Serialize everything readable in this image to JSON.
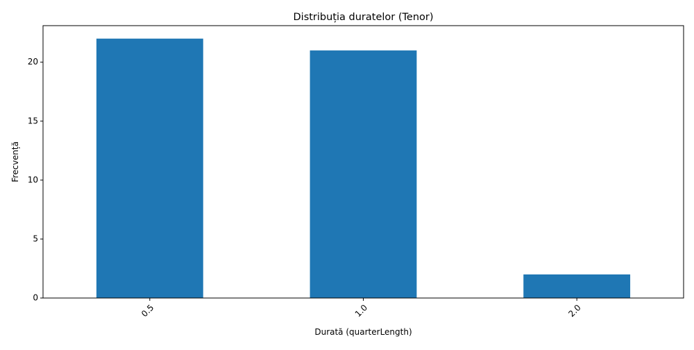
{
  "chart_data": {
    "type": "bar",
    "title": "Distribuția duratelor (Tenor)",
    "xlabel": "Durată (quarterLength)",
    "ylabel": "Frecvență",
    "categories": [
      "0.5",
      "1.0",
      "2.0"
    ],
    "values": [
      22,
      21,
      2
    ],
    "ylim": [
      0,
      23.1
    ],
    "yticks": [
      "0",
      "5",
      "10",
      "15",
      "20"
    ],
    "bar_color": "#1f77b4",
    "grid": false,
    "legend": "none"
  }
}
